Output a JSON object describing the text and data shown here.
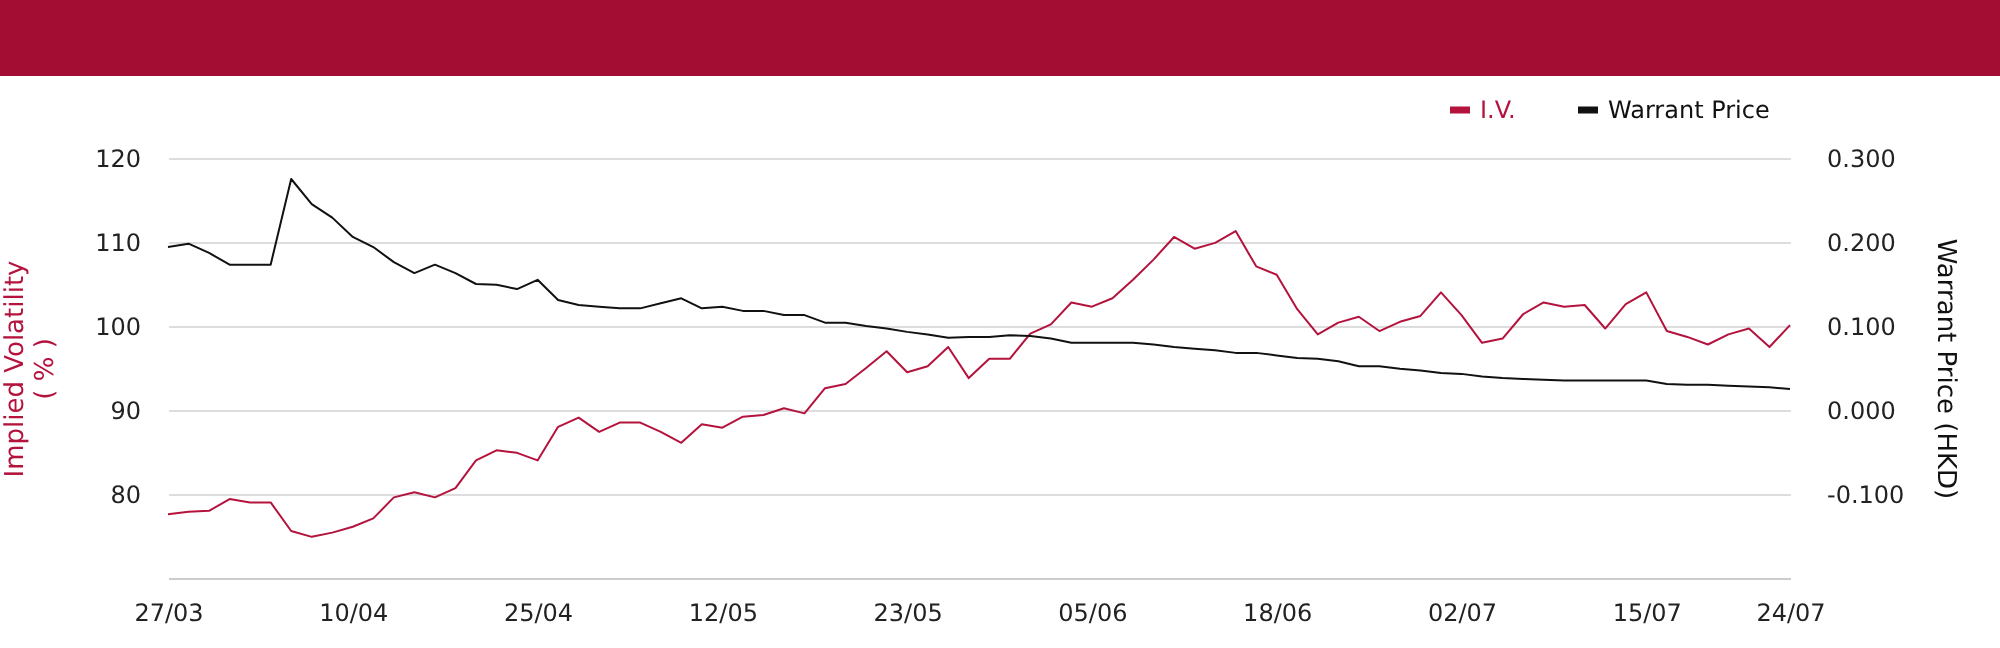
{
  "chart_data": {
    "type": "line",
    "ylabel": "Implied Volatility\n( % )",
    "y2label": "Warrant Price (HKD)",
    "categories": [
      "27/03",
      null,
      null,
      null,
      null,
      null,
      null,
      null,
      null,
      "10/04",
      null,
      null,
      null,
      null,
      null,
      null,
      null,
      null,
      "25/04",
      null,
      null,
      null,
      null,
      null,
      null,
      null,
      null,
      "12/05",
      null,
      null,
      null,
      null,
      null,
      null,
      null,
      null,
      "23/05",
      null,
      null,
      null,
      null,
      null,
      null,
      null,
      null,
      "05/06",
      null,
      null,
      null,
      null,
      null,
      null,
      null,
      null,
      "18/06",
      null,
      null,
      null,
      null,
      null,
      null,
      null,
      null,
      "02/07",
      null,
      null,
      null,
      null,
      null,
      null,
      null,
      null,
      "15/07",
      null,
      null,
      null,
      null,
      null,
      null,
      "24/07"
    ],
    "series": [
      {
        "name": "I.V.",
        "color": "#b3133d",
        "values": [
          77.6,
          77.9,
          78.0,
          79.4,
          79.0,
          79.0,
          75.6,
          74.9,
          75.4,
          76.1,
          77.1,
          79.6,
          80.2,
          79.6,
          80.7,
          84.0,
          85.2,
          84.9,
          84.0,
          88.0,
          89.1,
          87.4,
          88.5,
          88.5,
          87.4,
          86.1,
          88.3,
          87.9,
          89.2,
          89.4,
          90.2,
          89.6,
          92.6,
          93.1,
          95.0,
          97.0,
          94.5,
          95.2,
          97.5,
          93.8,
          96.1,
          96.1,
          99.1,
          100.2,
          102.8,
          102.3,
          103.3,
          105.5,
          107.9,
          110.6,
          109.2,
          109.9,
          111.3,
          107.1,
          106.1,
          102.0,
          99.0,
          100.4,
          101.1,
          99.4,
          100.5,
          101.2,
          104.0,
          101.3,
          98.0,
          98.5,
          101.4,
          102.8,
          102.3,
          102.5,
          99.7,
          102.6,
          104.0,
          99.4,
          98.7,
          97.8,
          99.0,
          99.7,
          97.5,
          100.1
        ]
      },
      {
        "name": "Warrant Price",
        "color": "#111111",
        "axis": "y2",
        "values": [
          0.194,
          0.198,
          0.187,
          0.173,
          0.173,
          0.173,
          0.275,
          0.245,
          0.229,
          0.206,
          0.194,
          0.176,
          0.163,
          0.173,
          0.163,
          0.15,
          0.149,
          0.144,
          0.155,
          0.131,
          0.125,
          0.123,
          0.121,
          0.121,
          0.127,
          0.133,
          0.121,
          0.123,
          0.118,
          0.118,
          0.113,
          0.113,
          0.104,
          0.104,
          0.1,
          0.097,
          0.093,
          0.09,
          0.086,
          0.087,
          0.087,
          0.089,
          0.088,
          0.085,
          0.08,
          0.08,
          0.08,
          0.08,
          0.078,
          0.075,
          0.073,
          0.071,
          0.068,
          0.068,
          0.065,
          0.062,
          0.061,
          0.058,
          0.052,
          0.052,
          0.049,
          0.047,
          0.044,
          0.043,
          0.04,
          0.038,
          0.037,
          0.036,
          0.035,
          0.035,
          0.035,
          0.035,
          0.035,
          0.031,
          0.03,
          0.03,
          0.029,
          0.028,
          0.027,
          0.025
        ]
      }
    ],
    "ylim": [
      70,
      120
    ],
    "yticks": [
      80,
      90,
      100,
      110,
      120
    ],
    "y2lim": [
      -0.2,
      0.3
    ],
    "y2ticks": [
      {
        "value": -0.1,
        "label": "-0.100"
      },
      {
        "value": 0,
        "label": "0.000"
      },
      {
        "value": 0.1,
        "label": "0.100"
      },
      {
        "value": 0.2,
        "label": "0.200"
      },
      {
        "value": 0.3,
        "label": "0.300"
      }
    ],
    "grid": "y",
    "legend": "top right",
    "marker": "none",
    "line_style": "solid"
  }
}
